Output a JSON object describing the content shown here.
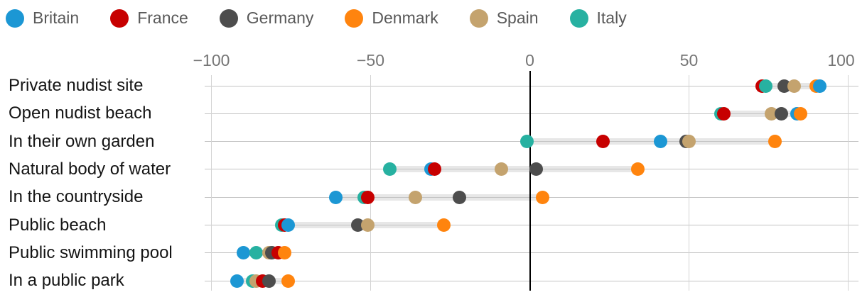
{
  "chart_data": {
    "type": "scatter",
    "variant": "dot-plot",
    "title": "",
    "xlabel": "",
    "ylabel": "",
    "xlim": [
      -100,
      100
    ],
    "grid": true,
    "legend_position": "top",
    "x_ticks": [
      {
        "label": "−100",
        "value": -100
      },
      {
        "label": "−50",
        "value": -50
      },
      {
        "label": "0",
        "value": 0
      },
      {
        "label": "50",
        "value": 50
      },
      {
        "label": "100",
        "value": 100
      }
    ],
    "categories": [
      "Private nudist site",
      "Open nudist beach",
      "In their own garden",
      "Natural body of water",
      "In the countryside",
      "Public beach",
      "Public swimming pool",
      "In a public park"
    ],
    "series": [
      {
        "name": "Britain",
        "color": "#1c97d4",
        "values": [
          91,
          84,
          41,
          -31,
          -61,
          -76,
          -90,
          -92
        ]
      },
      {
        "name": "France",
        "color": "#c70000",
        "values": [
          73,
          61,
          23,
          -30,
          -51,
          -77,
          -79,
          -84
        ]
      },
      {
        "name": "Germany",
        "color": "#4d4d4d",
        "values": [
          80,
          79,
          49,
          2,
          -22,
          -54,
          -81,
          -82
        ]
      },
      {
        "name": "Denmark",
        "color": "#ff840e",
        "values": [
          90,
          85,
          77,
          34,
          4,
          -27,
          -77,
          -76
        ]
      },
      {
        "name": "Spain",
        "color": "#c4a36e",
        "values": [
          83,
          76,
          50,
          -9,
          -36,
          -51,
          -82,
          -86
        ]
      },
      {
        "name": "Italy",
        "color": "#27b1a1",
        "values": [
          74,
          60,
          -1,
          -44,
          -52,
          -78,
          -86,
          -87
        ]
      }
    ],
    "styles": {
      "zero_line_color": "#000000",
      "grid_line_color": "#d4d4d4",
      "row_line_color": "#c3c3c3",
      "range_band_color": "#e7e7e7",
      "tick_label_color": "#757575",
      "legend_label_color": "#595959",
      "category_label_color": "#141414"
    }
  }
}
